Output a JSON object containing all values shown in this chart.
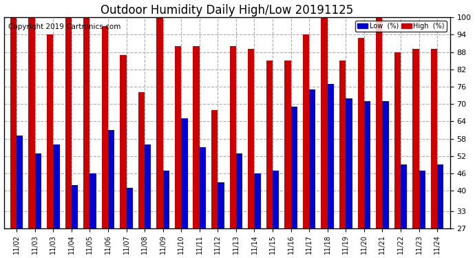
{
  "title": "Outdoor Humidity Daily High/Low 20191125",
  "copyright": "Copyright 2019 Cartronics.com",
  "dates": [
    "11/02",
    "11/03",
    "11/03",
    "11/04",
    "11/05",
    "11/06",
    "11/07",
    "11/08",
    "11/09",
    "11/10",
    "11/11",
    "11/12",
    "11/13",
    "11/14",
    "11/15",
    "11/16",
    "11/17",
    "11/18",
    "11/19",
    "11/20",
    "11/21",
    "11/22",
    "11/23",
    "11/24"
  ],
  "low_values": [
    59,
    53,
    56,
    42,
    46,
    61,
    41,
    56,
    47,
    65,
    55,
    43,
    53,
    46,
    47,
    69,
    75,
    77,
    72,
    71,
    71,
    49,
    47,
    49
  ],
  "high_values": [
    100,
    100,
    94,
    100,
    100,
    97,
    87,
    74,
    100,
    90,
    90,
    68,
    90,
    89,
    85,
    85,
    94,
    100,
    85,
    93,
    100,
    88,
    89,
    89
  ],
  "bar_width": 0.35,
  "low_color": "#0000cc",
  "high_color": "#cc0000",
  "bg_color": "#ffffff",
  "grid_color": "#aaaaaa",
  "ymin": 27,
  "ymax": 100,
  "yticks": [
    27,
    33,
    40,
    46,
    52,
    58,
    64,
    70,
    76,
    82,
    88,
    94,
    100
  ],
  "title_fontsize": 12,
  "copyright_fontsize": 7.5,
  "legend_low_label": "Low  (%)",
  "legend_high_label": "High  (%)"
}
